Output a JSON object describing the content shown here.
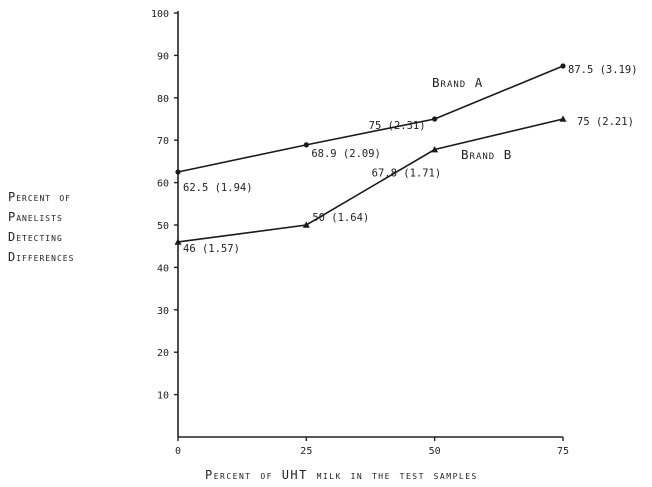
{
  "chart_data": {
    "type": "line",
    "xlabel": "Percent of UHT milk in the test samples",
    "ylabel_lines": [
      "Percent of",
      "Panelists",
      "Detecting",
      "Differences"
    ],
    "x": [
      0,
      25,
      50,
      75
    ],
    "x_tick_labels": [
      "0",
      "25",
      "50",
      "75"
    ],
    "xlim": [
      0,
      75
    ],
    "ylim": [
      0,
      100
    ],
    "y_ticks": [
      10,
      20,
      30,
      40,
      50,
      60,
      70,
      80,
      90,
      100
    ],
    "grid": false,
    "series": [
      {
        "name": "Brand A",
        "marker": "circle",
        "values": [
          62.5,
          68.9,
          75,
          87.5
        ],
        "labels": [
          "62.5 (1.94)",
          "68.9 (2.09)",
          "75 (2.31)",
          "87.5 (3.19)"
        ]
      },
      {
        "name": "Brand B",
        "marker": "triangle",
        "values": [
          46,
          50,
          67.8,
          75
        ],
        "labels": [
          "46 (1.57)",
          "50 (1.64)",
          "67.8 (1.71)",
          "75 (2.21)"
        ]
      }
    ]
  }
}
